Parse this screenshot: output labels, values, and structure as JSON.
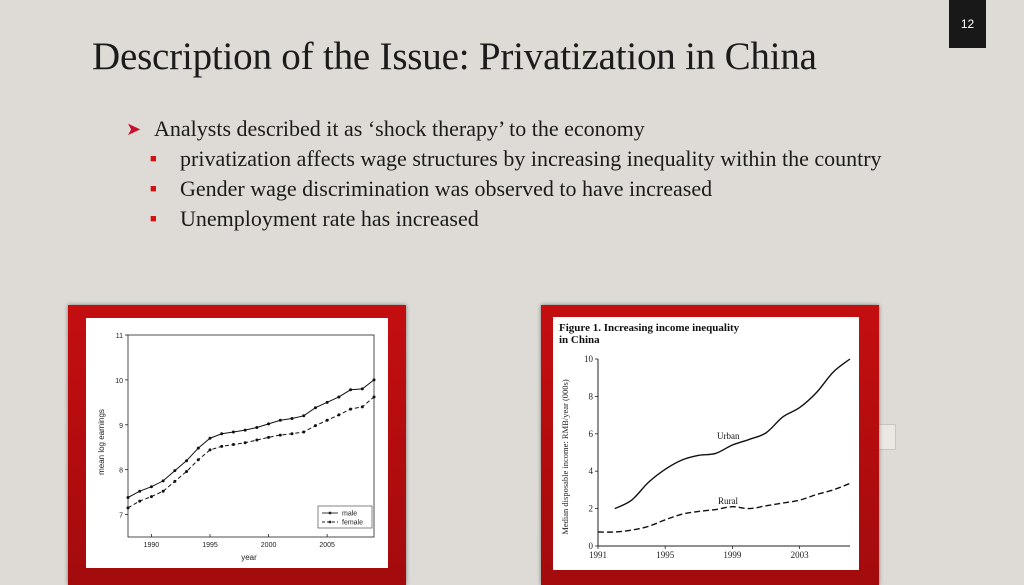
{
  "slide": {
    "number": "12",
    "title": "Description of the Issue: Privatization in China",
    "bullet_main": "Analysts described it as ‘shock therapy’ to the economy",
    "sub_bullets": [
      "privatization affects wage structures by increasing inequality within the country",
      "Gender wage discrimination was observed to have increased",
      "Unemployment rate has increased"
    ]
  },
  "colors": {
    "accent": "#c8102e",
    "frame": "#b80d10",
    "background": "#dedbd6"
  },
  "chart_data": [
    {
      "type": "line",
      "title": "",
      "xlabel": "year",
      "ylabel": "mean log earnings",
      "xlim": [
        1988,
        2009
      ],
      "ylim": [
        6.5,
        11
      ],
      "xticks": [
        1990,
        1995,
        2000,
        2005
      ],
      "yticks": [
        7,
        8,
        9,
        10,
        11
      ],
      "legend_position": "bottom-right",
      "series": [
        {
          "name": "male",
          "style": "solid",
          "x": [
            1988,
            1989,
            1990,
            1991,
            1992,
            1993,
            1994,
            1995,
            1996,
            1997,
            1998,
            1999,
            2000,
            2001,
            2002,
            2003,
            2004,
            2005,
            2006,
            2007,
            2008,
            2009
          ],
          "y": [
            7.38,
            7.52,
            7.62,
            7.75,
            7.98,
            8.2,
            8.48,
            8.7,
            8.8,
            8.84,
            8.88,
            8.94,
            9.02,
            9.1,
            9.14,
            9.2,
            9.38,
            9.5,
            9.62,
            9.78,
            9.8,
            10.0
          ]
        },
        {
          "name": "female",
          "style": "dashed",
          "x": [
            1988,
            1989,
            1990,
            1991,
            1992,
            1993,
            1994,
            1995,
            1996,
            1997,
            1998,
            1999,
            2000,
            2001,
            2002,
            2003,
            2004,
            2005,
            2006,
            2007,
            2008,
            2009
          ],
          "y": [
            7.15,
            7.3,
            7.4,
            7.52,
            7.74,
            7.96,
            8.22,
            8.44,
            8.52,
            8.56,
            8.6,
            8.66,
            8.72,
            8.77,
            8.8,
            8.84,
            8.98,
            9.1,
            9.22,
            9.35,
            9.4,
            9.62
          ]
        }
      ]
    },
    {
      "type": "line",
      "title": "Figure 1. Increasing income inequality in China",
      "xlabel": "",
      "ylabel": "Median disposable income: RMB/year (000s)",
      "xlim": [
        1991,
        2006
      ],
      "ylim": [
        0,
        10
      ],
      "xticks": [
        1991,
        1995,
        1999,
        2003
      ],
      "yticks": [
        0,
        2,
        4,
        6,
        8,
        10
      ],
      "series": [
        {
          "name": "Urban",
          "style": "solid",
          "x": [
            1992,
            1993,
            1994,
            1995,
            1996,
            1997,
            1998,
            1999,
            2000,
            2001,
            2002,
            2003,
            2004,
            2005,
            2006
          ],
          "y": [
            2.0,
            2.45,
            3.4,
            4.1,
            4.6,
            4.85,
            4.95,
            5.4,
            5.7,
            6.05,
            6.9,
            7.4,
            8.2,
            9.3,
            10.0
          ]
        },
        {
          "name": "Rural",
          "style": "dashed",
          "x": [
            1991,
            1992,
            1993,
            1994,
            1995,
            1996,
            1997,
            1998,
            1999,
            2000,
            2001,
            2002,
            2003,
            2004,
            2005,
            2006
          ],
          "y": [
            0.75,
            0.75,
            0.85,
            1.05,
            1.4,
            1.7,
            1.85,
            1.95,
            2.1,
            2.0,
            2.15,
            2.3,
            2.45,
            2.75,
            3.0,
            3.35
          ]
        }
      ]
    }
  ]
}
